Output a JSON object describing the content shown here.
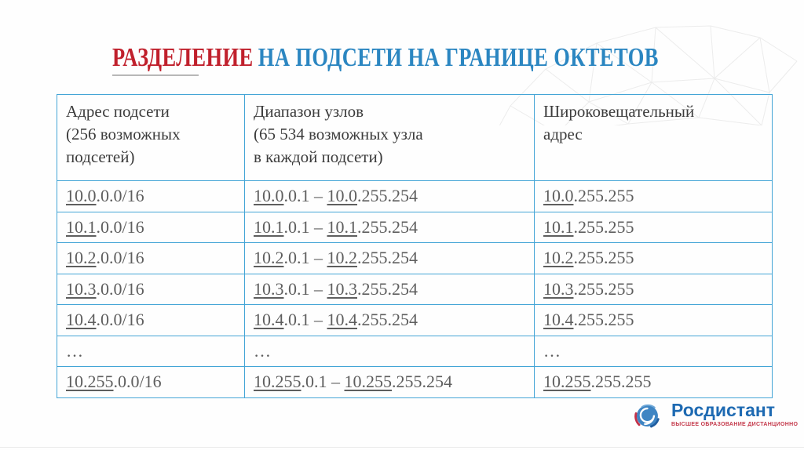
{
  "title": {
    "highlight": "РАЗДЕЛЕНИЕ",
    "rest": "НА ПОДСЕТИ НА ГРАНИЦЕ ОКТЕТОВ"
  },
  "table": {
    "headers": [
      {
        "lines": [
          "Адрес подсети",
          "(256 возможных",
          "подсетей)"
        ]
      },
      {
        "lines": [
          "Диапазон узлов",
          "(65 534 возможных узла",
          "в каждой подсети)"
        ]
      },
      {
        "lines": [
          "Широковещательный",
          "адрес"
        ]
      }
    ],
    "rows": [
      [
        [
          {
            "t": "10.0",
            "u": true
          },
          {
            "t": ".0.0/16",
            "u": false
          }
        ],
        [
          {
            "t": "10.0",
            "u": true
          },
          {
            "t": ".0.1 – ",
            "u": false
          },
          {
            "t": "10.0",
            "u": true
          },
          {
            "t": ".255.254",
            "u": false
          }
        ],
        [
          {
            "t": "10.0",
            "u": true
          },
          {
            "t": ".255.255",
            "u": false
          }
        ]
      ],
      [
        [
          {
            "t": "10.1",
            "u": true
          },
          {
            "t": ".0.0/16",
            "u": false
          }
        ],
        [
          {
            "t": "10.1",
            "u": true
          },
          {
            "t": ".0.1 – ",
            "u": false
          },
          {
            "t": "10.1",
            "u": true
          },
          {
            "t": ".255.254",
            "u": false
          }
        ],
        [
          {
            "t": "10.1",
            "u": true
          },
          {
            "t": ".255.255",
            "u": false
          }
        ]
      ],
      [
        [
          {
            "t": "10.2",
            "u": true
          },
          {
            "t": ".0.0/16",
            "u": false
          }
        ],
        [
          {
            "t": "10.2",
            "u": true
          },
          {
            "t": ".0.1 – ",
            "u": false
          },
          {
            "t": "10.2",
            "u": true
          },
          {
            "t": ".255.254",
            "u": false
          }
        ],
        [
          {
            "t": "10.2",
            "u": true
          },
          {
            "t": ".255.255",
            "u": false
          }
        ]
      ],
      [
        [
          {
            "t": "10.3",
            "u": true
          },
          {
            "t": ".0.0/16",
            "u": false
          }
        ],
        [
          {
            "t": "10.3",
            "u": true
          },
          {
            "t": ".0.1 – ",
            "u": false
          },
          {
            "t": "10.3",
            "u": true
          },
          {
            "t": ".255.254",
            "u": false
          }
        ],
        [
          {
            "t": "10.3",
            "u": true
          },
          {
            "t": ".255.255",
            "u": false
          }
        ]
      ],
      [
        [
          {
            "t": "10.4",
            "u": true
          },
          {
            "t": ".0.0/16",
            "u": false
          }
        ],
        [
          {
            "t": "10.4",
            "u": true
          },
          {
            "t": ".0.1 – ",
            "u": false
          },
          {
            "t": "10.4",
            "u": true
          },
          {
            "t": ".255.254",
            "u": false
          }
        ],
        [
          {
            "t": "10.4",
            "u": true
          },
          {
            "t": ".255.255",
            "u": false
          }
        ]
      ],
      [
        [
          {
            "t": "…",
            "u": false
          }
        ],
        [
          {
            "t": "…",
            "u": false
          }
        ],
        [
          {
            "t": "…",
            "u": false
          }
        ]
      ],
      [
        [
          {
            "t": "10.255",
            "u": true
          },
          {
            "t": ".0.0/16",
            "u": false
          }
        ],
        [
          {
            "t": "10.255",
            "u": true
          },
          {
            "t": ".0.1 – ",
            "u": false
          },
          {
            "t": "10.255",
            "u": true
          },
          {
            "t": ".255.254",
            "u": false
          }
        ],
        [
          {
            "t": "10.255",
            "u": true
          },
          {
            "t": ".255.255",
            "u": false
          }
        ]
      ]
    ]
  },
  "logo": {
    "name": "Росдистант",
    "tagline": "ВЫСШЕЕ ОБРАЗОВАНИЕ ДИСТАНЦИОННО"
  },
  "colors": {
    "title_red": "#c0202c",
    "title_blue": "#2b86c1",
    "table_border": "#44a5d6",
    "header_text": "#3c3c3c",
    "cell_text": "#5e5e5e",
    "logo_blue": "#1e6ab2",
    "logo_red": "#c4394b"
  }
}
